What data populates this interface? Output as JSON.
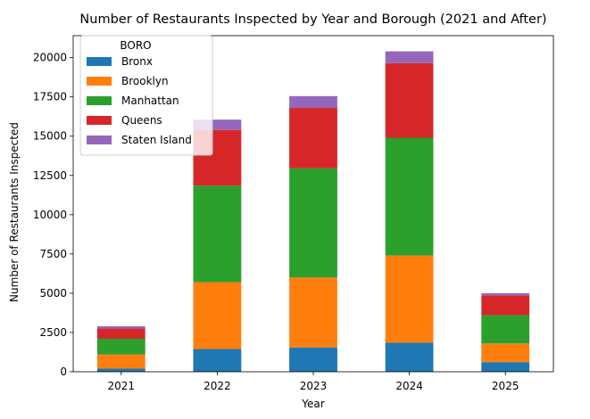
{
  "chart_data": {
    "type": "bar",
    "stacked": true,
    "title": "Number of Restaurants Inspected by Year and Borough (2021 and After)",
    "xlabel": "Year",
    "ylabel": "Number of Restaurants Inspected",
    "categories": [
      "2021",
      "2022",
      "2023",
      "2024",
      "2025"
    ],
    "ylim": [
      0,
      21400
    ],
    "yticks": [
      0,
      2500,
      5000,
      7500,
      10000,
      12500,
      15000,
      17500,
      20000
    ],
    "grid": false,
    "legend": {
      "title": "BORO",
      "placement": "upper-left"
    },
    "series": [
      {
        "name": "Bronx",
        "color": "#1f77b4",
        "values": [
          200,
          1450,
          1550,
          1850,
          600
        ]
      },
      {
        "name": "Brooklyn",
        "color": "#ff7f0e",
        "values": [
          900,
          4250,
          4450,
          5550,
          1200
        ]
      },
      {
        "name": "Manhattan",
        "color": "#2ca02c",
        "values": [
          1000,
          6150,
          6950,
          7500,
          1800
        ]
      },
      {
        "name": "Queens",
        "color": "#d62728",
        "values": [
          650,
          3550,
          3850,
          4750,
          1250
        ]
      },
      {
        "name": "Staten Island",
        "color": "#9467bd",
        "values": [
          150,
          650,
          750,
          750,
          150
        ]
      }
    ]
  }
}
